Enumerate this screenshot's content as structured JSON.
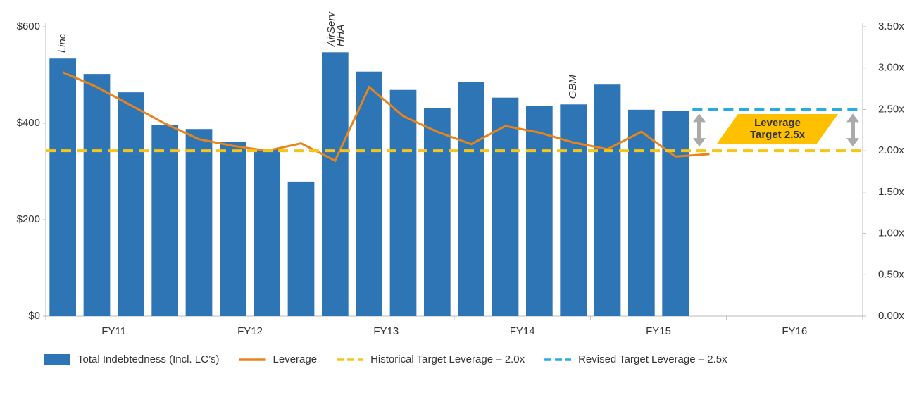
{
  "chart_data": {
    "type": "bar_line",
    "categories": [
      null,
      "FY11",
      null,
      null,
      null,
      "FY12",
      null,
      null,
      null,
      "FY13",
      null,
      null,
      null,
      "FY14",
      null,
      null,
      null,
      "FY15",
      null,
      null,
      null,
      "FY16",
      null,
      null
    ],
    "series": [
      {
        "name": "Total Indebtedness (Incl. LC’s)",
        "color": "#2e75b6",
        "kind": "bar",
        "values": [
          534,
          502,
          464,
          396,
          388,
          362,
          346,
          279,
          547,
          507,
          469,
          431,
          486,
          453,
          436,
          439,
          480,
          428,
          425,
          null,
          null,
          null,
          null,
          null
        ]
      },
      {
        "name": "Leverage",
        "color": "#e8841a",
        "kind": "line",
        "axis": "y2",
        "values": [
          2.95,
          2.77,
          2.55,
          2.33,
          2.14,
          2.06,
          2.0,
          2.09,
          1.88,
          2.77,
          2.42,
          2.23,
          2.08,
          2.3,
          2.22,
          2.1,
          2.02,
          2.23,
          1.93,
          1.96,
          null,
          null,
          null,
          null
        ]
      }
    ],
    "reference_lines": [
      {
        "name": "Historical Target Leverage – 2.0x",
        "value": 2.0,
        "axis": "y2",
        "color": "#f5c518",
        "start_index": 0
      },
      {
        "name": "Revised Target Leverage – 2.5x",
        "value": 2.5,
        "axis": "y2",
        "color": "#29abe2",
        "start_index": 19
      }
    ],
    "annotations": [
      {
        "lines": [
          "Linc"
        ],
        "index": 0
      },
      {
        "lines": [
          "AirServ",
          "HHA"
        ],
        "index": 8
      },
      {
        "lines": [
          "GBM"
        ],
        "index": 15
      }
    ],
    "callout": {
      "lines": [
        "Leverage",
        "Target 2.5x"
      ],
      "color": "#ffc000"
    },
    "ylim": [
      0,
      600
    ],
    "yticks": [
      {
        "value": 0,
        "label": "$0"
      },
      {
        "value": 200,
        "label": "$200"
      },
      {
        "value": 400,
        "label": "$400"
      },
      {
        "value": 600,
        "label": "$600"
      }
    ],
    "y2lim": [
      0,
      3.5
    ],
    "y2ticks": [
      {
        "value": 0,
        "label": "0.00x"
      },
      {
        "value": 0.5,
        "label": "0.50x"
      },
      {
        "value": 1,
        "label": "1.00x"
      },
      {
        "value": 1.5,
        "label": "1.50x"
      },
      {
        "value": 2,
        "label": "2.00x"
      },
      {
        "value": 2.5,
        "label": "2.50x"
      },
      {
        "value": 3,
        "label": "3.00x"
      },
      {
        "value": 3.5,
        "label": "3.50x"
      }
    ],
    "y2_color": "#e8a317"
  }
}
